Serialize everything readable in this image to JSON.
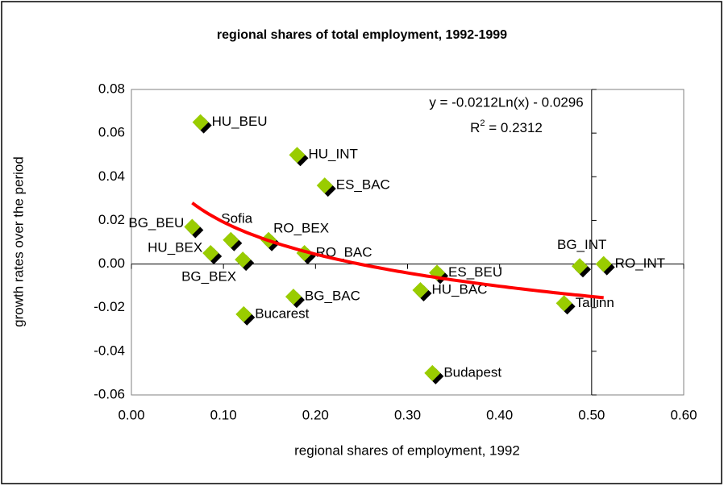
{
  "chart_data": {
    "type": "scatter",
    "title": "regional shares of total employment, 1992-1999",
    "x_label": "regional shares of employment, 1992",
    "y_label": "growth rates over the period",
    "series": [
      {
        "name": "regions",
        "color": "#99cc00",
        "point_labels": [
          "HU_BEU",
          "HU_INT",
          "ES_BAC",
          "BG_BEU",
          "HU_BEX",
          "BG_BEX",
          "Sofia",
          "RO_BEX",
          "RO_BAC",
          "BG_BAC",
          "Bucarest",
          "Budapest",
          "ES_BEU",
          "HU_BAC",
          "BG_INT",
          "RO_INT",
          "Tallinn"
        ],
        "x": [
          0.075,
          0.18,
          0.21,
          0.066,
          0.086,
          0.121,
          0.108,
          0.149,
          0.188,
          0.176,
          0.122,
          0.327,
          0.332,
          0.314,
          0.487,
          0.513,
          0.47
        ],
        "values": [
          0.065,
          0.05,
          0.036,
          0.017,
          0.005,
          0.002,
          0.011,
          0.011,
          0.005,
          -0.015,
          -0.023,
          -0.05,
          -0.004,
          -0.012,
          -0.001,
          0.0,
          -0.018
        ]
      }
    ],
    "trendline": {
      "type": "log",
      "color": "#ff0000",
      "a": -0.0212,
      "b": -0.0296,
      "equation_label": "y = -0.0212Ln(x) - 0.0296",
      "r_squared_label": [
        "R",
        "2",
        " = 0.2312"
      ]
    },
    "xlim": [
      0,
      0.6
    ],
    "xticks": [
      {
        "value": 0,
        "label": "0.00"
      },
      {
        "value": 0.1,
        "label": "0.10"
      },
      {
        "value": 0.2,
        "label": "0.20"
      },
      {
        "value": 0.3,
        "label": "0.30"
      },
      {
        "value": 0.4,
        "label": "0.40"
      },
      {
        "value": 0.5,
        "label": "0.50"
      },
      {
        "value": 0.6,
        "label": "0.60"
      }
    ],
    "ylim": [
      -0.06,
      0.08
    ],
    "yticks": [
      {
        "value": -0.06,
        "label": "-0.06"
      },
      {
        "value": -0.04,
        "label": "-0.04"
      },
      {
        "value": -0.02,
        "label": "-0.02"
      },
      {
        "value": 0,
        "label": "0.00"
      },
      {
        "value": 0.02,
        "label": "0.02"
      },
      {
        "value": 0.04,
        "label": "0.04"
      },
      {
        "value": 0.06,
        "label": "0.06"
      },
      {
        "value": 0.08,
        "label": "0.08"
      }
    ],
    "y_axis_crosses_at": 0.5,
    "grid": false
  }
}
